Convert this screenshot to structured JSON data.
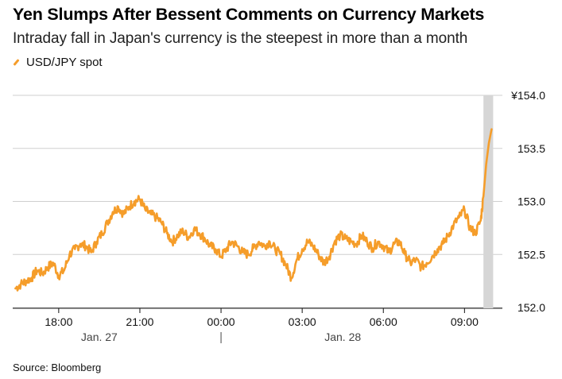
{
  "header": {
    "title": "Yen Slumps After Bessent Comments on Currency Markets",
    "subtitle": "Intraday fall in Japan's currency is the steepest in more than a month"
  },
  "footer": {
    "source": "Source: Bloomberg"
  },
  "colors": {
    "series": "#f59d2a",
    "grid": "#cfcfcf",
    "highlight": "#d6d6d6"
  },
  "chart_data": {
    "type": "line",
    "title": "Yen Slumps After Bessent Comments on Currency Markets",
    "subtitle": "Intraday fall in Japan's currency is the steepest in more than a month",
    "legend": [
      "USD/JPY spot"
    ],
    "legend_position": "top-left",
    "xlabel": "",
    "ylabel": "",
    "x_unit": "hours since Jan. 27 00:00",
    "xlim": [
      16.3,
      34.4
    ],
    "ylim": [
      152.0,
      154.0
    ],
    "y_ticks": [
      152.0,
      152.5,
      153.0,
      153.5,
      154.0
    ],
    "y_tick_labels": [
      "152.0",
      "152.5",
      "153.0",
      "153.5",
      "¥154.0"
    ],
    "x_ticks": [
      18,
      21,
      24,
      27,
      30,
      33
    ],
    "x_tick_labels": [
      "18:00",
      "21:00",
      "00:00",
      "03:00",
      "06:00",
      "09:00"
    ],
    "date_labels": [
      {
        "x": 19.5,
        "label": "Jan. 27"
      },
      {
        "x": 28.5,
        "label": "Jan. 28"
      }
    ],
    "day_divider_x": 24,
    "grid": true,
    "highlight_band": [
      33.7,
      34.0
    ],
    "series": [
      {
        "name": "USD/JPY spot",
        "x": [
          16.4,
          16.6,
          16.8,
          17.0,
          17.2,
          17.4,
          17.6,
          17.8,
          18.0,
          18.2,
          18.4,
          18.6,
          18.8,
          19.0,
          19.2,
          19.4,
          19.6,
          19.8,
          20.0,
          20.2,
          20.4,
          20.6,
          20.8,
          21.0,
          21.2,
          21.4,
          21.6,
          21.8,
          22.0,
          22.2,
          22.4,
          22.6,
          22.8,
          23.0,
          23.2,
          23.4,
          23.6,
          23.8,
          24.0,
          24.2,
          24.4,
          24.6,
          24.8,
          25.0,
          25.2,
          25.4,
          25.6,
          25.8,
          26.0,
          26.2,
          26.4,
          26.6,
          26.8,
          27.0,
          27.2,
          27.4,
          27.6,
          27.8,
          28.0,
          28.2,
          28.4,
          28.6,
          28.8,
          29.0,
          29.2,
          29.4,
          29.6,
          29.8,
          30.0,
          30.2,
          30.4,
          30.6,
          30.8,
          31.0,
          31.2,
          31.4,
          31.6,
          31.8,
          32.0,
          32.2,
          32.4,
          32.6,
          32.8,
          33.0,
          33.2,
          33.4,
          33.6,
          33.7,
          33.8,
          33.9,
          34.0
        ],
        "values": [
          152.18,
          152.22,
          152.25,
          152.28,
          152.35,
          152.32,
          152.38,
          152.42,
          152.3,
          152.35,
          152.5,
          152.55,
          152.6,
          152.58,
          152.52,
          152.62,
          152.7,
          152.8,
          152.9,
          152.95,
          152.88,
          152.95,
          153.0,
          153.02,
          152.92,
          152.88,
          152.85,
          152.8,
          152.7,
          152.62,
          152.68,
          152.72,
          152.66,
          152.74,
          152.7,
          152.65,
          152.58,
          152.55,
          152.48,
          152.55,
          152.62,
          152.58,
          152.52,
          152.5,
          152.56,
          152.62,
          152.58,
          152.62,
          152.55,
          152.5,
          152.4,
          152.28,
          152.45,
          152.55,
          152.62,
          152.58,
          152.5,
          152.42,
          152.48,
          152.62,
          152.68,
          152.65,
          152.62,
          152.6,
          152.68,
          152.62,
          152.56,
          152.62,
          152.58,
          152.52,
          152.6,
          152.62,
          152.5,
          152.42,
          152.45,
          152.38,
          152.42,
          152.48,
          152.55,
          152.6,
          152.68,
          152.78,
          152.85,
          152.92,
          152.75,
          152.7,
          152.82,
          153.05,
          153.35,
          153.55,
          153.68
        ]
      }
    ]
  }
}
